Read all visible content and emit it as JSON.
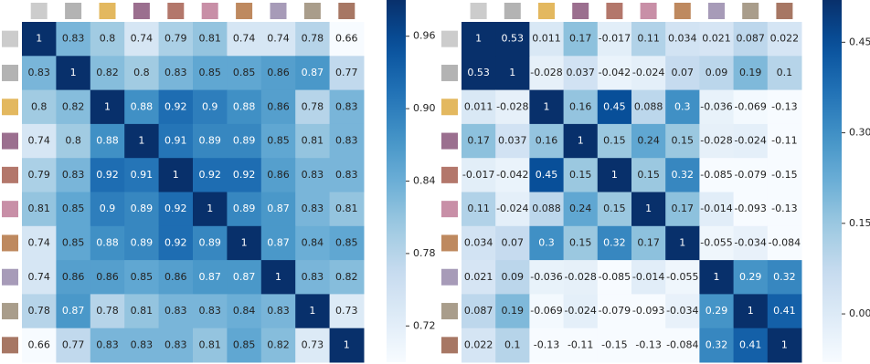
{
  "chart_data": [
    {
      "type": "heatmap",
      "colormap": "Blues",
      "values": [
        [
          1,
          0.83,
          0.8,
          0.74,
          0.79,
          0.81,
          0.74,
          0.74,
          0.78,
          0.66
        ],
        [
          0.83,
          1,
          0.82,
          0.8,
          0.83,
          0.85,
          0.85,
          0.86,
          0.87,
          0.77
        ],
        [
          0.8,
          0.82,
          1,
          0.88,
          0.92,
          0.9,
          0.88,
          0.86,
          0.78,
          0.83
        ],
        [
          0.74,
          0.8,
          0.88,
          1,
          0.91,
          0.89,
          0.89,
          0.85,
          0.81,
          0.83
        ],
        [
          0.79,
          0.83,
          0.92,
          0.91,
          1,
          0.92,
          0.92,
          0.86,
          0.83,
          0.83
        ],
        [
          0.81,
          0.85,
          0.9,
          0.89,
          0.92,
          1,
          0.89,
          0.87,
          0.83,
          0.81
        ],
        [
          0.74,
          0.85,
          0.88,
          0.89,
          0.92,
          0.89,
          1,
          0.87,
          0.84,
          0.85
        ],
        [
          0.74,
          0.86,
          0.86,
          0.85,
          0.86,
          0.87,
          0.87,
          1,
          0.83,
          0.82
        ],
        [
          0.78,
          0.87,
          0.78,
          0.81,
          0.83,
          0.83,
          0.84,
          0.83,
          1,
          0.73
        ],
        [
          0.66,
          0.77,
          0.83,
          0.83,
          0.83,
          0.81,
          0.85,
          0.82,
          0.73,
          1
        ]
      ],
      "clim": [
        0.69,
        0.99
      ],
      "cticks": [
        0.72,
        0.78,
        0.84,
        {
          "value": 0.9,
          "label": "0.90"
        },
        0.96
      ]
    },
    {
      "type": "heatmap",
      "colormap": "Blues",
      "values": [
        [
          1,
          0.53,
          0.011,
          0.17,
          -0.017,
          0.11,
          0.034,
          0.021,
          0.087,
          0.022
        ],
        [
          0.53,
          1,
          -0.028,
          0.037,
          -0.042,
          -0.024,
          0.07,
          0.09,
          0.19,
          0.1
        ],
        [
          0.011,
          -0.028,
          1,
          0.16,
          0.45,
          0.088,
          0.3,
          -0.036,
          -0.069,
          -0.13
        ],
        [
          0.17,
          0.037,
          0.16,
          1,
          0.15,
          0.24,
          0.15,
          -0.028,
          -0.024,
          -0.11
        ],
        [
          -0.017,
          -0.042,
          0.45,
          0.15,
          1,
          0.15,
          0.32,
          -0.085,
          -0.079,
          -0.15
        ],
        [
          0.11,
          -0.024,
          0.088,
          0.24,
          0.15,
          1,
          0.17,
          -0.014,
          -0.093,
          -0.13
        ],
        [
          0.034,
          0.07,
          0.3,
          0.15,
          0.32,
          0.17,
          1,
          -0.055,
          -0.034,
          -0.084
        ],
        [
          0.021,
          0.09,
          -0.036,
          -0.028,
          -0.085,
          -0.014,
          -0.055,
          1,
          0.29,
          0.32
        ],
        [
          0.087,
          0.19,
          -0.069,
          -0.024,
          -0.079,
          -0.093,
          -0.034,
          0.29,
          1,
          0.41
        ],
        [
          0.022,
          0.1,
          -0.13,
          -0.11,
          -0.15,
          -0.13,
          -0.084,
          0.32,
          0.41,
          1
        ]
      ],
      "clim": [
        -0.08,
        0.52
      ],
      "cticks": [
        {
          "value": 0,
          "label": "0.00"
        },
        0.15,
        {
          "value": 0.3,
          "label": "0.30"
        },
        0.45
      ]
    }
  ]
}
